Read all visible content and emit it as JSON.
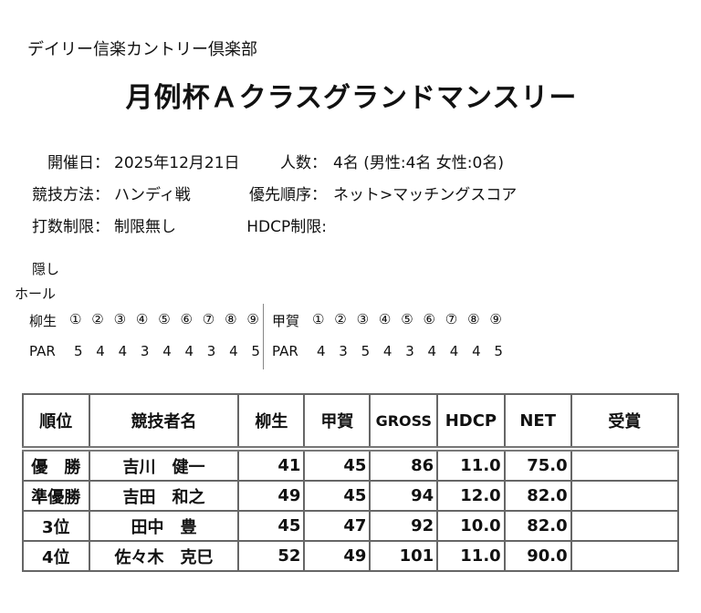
{
  "header": {
    "club": "デイリー信楽カントリー倶楽部",
    "title": "月例杯Ａクラスグランドマンスリー"
  },
  "info": [
    {
      "label": "開催日：",
      "value": "2025年12月21日",
      "label2": "人数：",
      "value2": "4名 (男性:4名 女性:0名)"
    },
    {
      "label": "競技方法：",
      "value": "ハンディ戦",
      "label2": "優先順序：",
      "value2": "ネット>マッチングスコア"
    },
    {
      "label": "打数制限：",
      "value": "制限無し",
      "label2": "HDCP制限:"
    }
  ],
  "hidden_holes": {
    "label1": "隠し",
    "label2": "ホール"
  },
  "courses": [
    {
      "name": "柳生",
      "holes": [
        "①",
        "②",
        "③",
        "④",
        "⑤",
        "⑥",
        "⑦",
        "⑧",
        "⑨"
      ],
      "par_label": "PAR",
      "par": [
        5,
        4,
        4,
        3,
        4,
        4,
        3,
        4,
        5
      ]
    },
    {
      "name": "甲賀",
      "holes": [
        "①",
        "②",
        "③",
        "④",
        "⑤",
        "⑥",
        "⑦",
        "⑧",
        "⑨"
      ],
      "par_label": "PAR",
      "par": [
        4,
        3,
        5,
        4,
        3,
        4,
        4,
        4,
        5
      ]
    }
  ],
  "table": {
    "columns": [
      "順位",
      "競技者名",
      "柳生",
      "甲賀",
      "GROSS",
      "HDCP",
      "NET",
      "受賞"
    ],
    "rows": [
      [
        "優　勝",
        "吉川　健一",
        "41",
        "45",
        "86",
        "11.0",
        "75.0"
      ],
      [
        "準優勝",
        "吉田　和之",
        "49",
        "45",
        "94",
        "12.0",
        "82.0"
      ],
      [
        "3位",
        "田中　豊",
        "45",
        "47",
        "92",
        "10.0",
        "82.0"
      ],
      [
        "4位",
        "佐々木　克巳",
        "52",
        "49",
        "101",
        "11.0",
        "90.0"
      ]
    ]
  }
}
